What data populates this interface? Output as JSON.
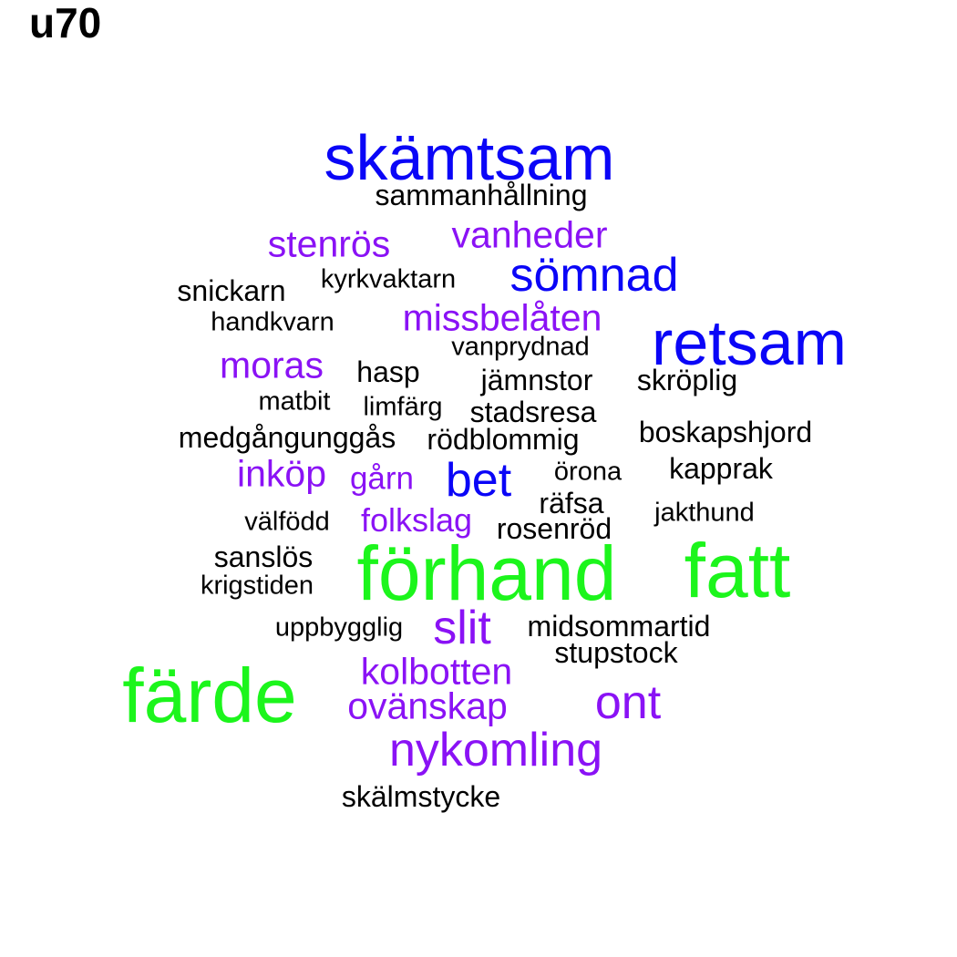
{
  "title": "u70",
  "colors": {
    "black": "#000000",
    "purple": "#8a12f5",
    "blue": "#0a05f7",
    "green": "#1cf51c"
  },
  "words": [
    {
      "text": "skämtsam",
      "color": "blue"
    },
    {
      "text": "sammanhållning",
      "color": "black"
    },
    {
      "text": "stenrös",
      "color": "purple"
    },
    {
      "text": "vanheder",
      "color": "purple"
    },
    {
      "text": "sömnad",
      "color": "blue"
    },
    {
      "text": "snickarn",
      "color": "black"
    },
    {
      "text": "kyrkvaktarn",
      "color": "black"
    },
    {
      "text": "handkvarn",
      "color": "black"
    },
    {
      "text": "missbelåten",
      "color": "purple"
    },
    {
      "text": "retsam",
      "color": "blue"
    },
    {
      "text": "vanprydnad",
      "color": "black"
    },
    {
      "text": "moras",
      "color": "purple"
    },
    {
      "text": "hasp",
      "color": "black"
    },
    {
      "text": "jämnstor",
      "color": "black"
    },
    {
      "text": "skröplig",
      "color": "black"
    },
    {
      "text": "matbit",
      "color": "black"
    },
    {
      "text": "limfärg",
      "color": "black"
    },
    {
      "text": "stadsresa",
      "color": "black"
    },
    {
      "text": "medgångunggås",
      "color": "black"
    },
    {
      "text": "rödblommig",
      "color": "black"
    },
    {
      "text": "boskapshjord",
      "color": "black"
    },
    {
      "text": "inköp",
      "color": "purple"
    },
    {
      "text": "gårn",
      "color": "purple"
    },
    {
      "text": "bet",
      "color": "blue"
    },
    {
      "text": "örona",
      "color": "black"
    },
    {
      "text": "kapprak",
      "color": "black"
    },
    {
      "text": "räfsa",
      "color": "black"
    },
    {
      "text": "välfödd",
      "color": "black"
    },
    {
      "text": "folkslag",
      "color": "purple"
    },
    {
      "text": "rosenröd",
      "color": "black"
    },
    {
      "text": "jakthund",
      "color": "black"
    },
    {
      "text": "sanslös",
      "color": "black"
    },
    {
      "text": "förhand",
      "color": "green"
    },
    {
      "text": "fatt",
      "color": "green"
    },
    {
      "text": "krigstiden",
      "color": "black"
    },
    {
      "text": "uppbygglig",
      "color": "black"
    },
    {
      "text": "slit",
      "color": "purple"
    },
    {
      "text": "midsommartid",
      "color": "black"
    },
    {
      "text": "stupstock",
      "color": "black"
    },
    {
      "text": "kolbotten",
      "color": "purple"
    },
    {
      "text": "färde",
      "color": "green"
    },
    {
      "text": "ovänskap",
      "color": "purple"
    },
    {
      "text": "ont",
      "color": "purple"
    },
    {
      "text": "nykomling",
      "color": "purple"
    },
    {
      "text": "skälmstycke",
      "color": "black"
    }
  ]
}
